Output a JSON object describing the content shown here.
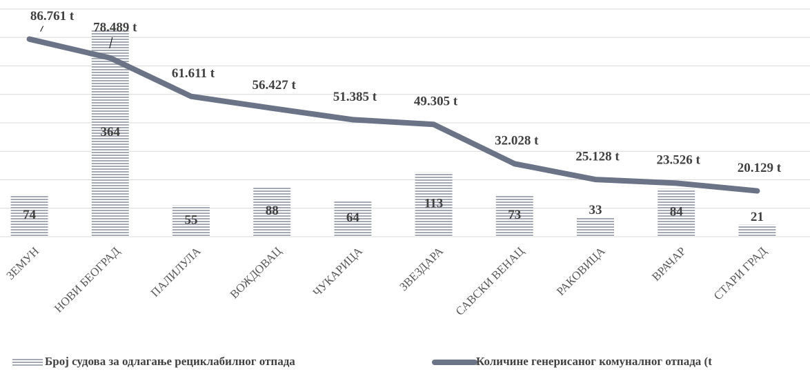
{
  "chart_data": {
    "type": "bar+line",
    "categories": [
      "ЗЕМУН",
      "НОВИ БЕОГРАД",
      "ПАЛИЛУЛА",
      "ВОЖДОВАЦ",
      "ЧУКАРИЦА",
      "ЗВЕЗДАРА",
      "САВСКИ ВЕНАЦ",
      "РАКОВИЦА",
      "ВРАЧАР",
      "СТАРИ ГРАД"
    ],
    "series": [
      {
        "name": "Број судова за одлагање рециклабилног отпада",
        "type": "bar",
        "color": "#a5a9b4",
        "values": [
          74,
          364,
          55,
          88,
          64,
          113,
          73,
          33,
          84,
          21
        ]
      },
      {
        "name": "Количине генерисаног комуналног отпада (t",
        "type": "line",
        "axis": "y2",
        "color": "#6b7386",
        "values": [
          86761,
          78489,
          61611,
          56427,
          51385,
          49305,
          32028,
          25128,
          23526,
          20129
        ],
        "value_labels": [
          "86.761 t",
          "78.489 t",
          "61.611 t",
          "56.427 t",
          "51.385 t",
          "49.305 t",
          "32.028 t",
          "25.128 t",
          "23.526 t",
          "20.129 t"
        ]
      }
    ],
    "ylim": [
      0,
      400
    ],
    "yticks": [
      0,
      50,
      100,
      150,
      200,
      250,
      300,
      350,
      400
    ],
    "y2lim": [
      0,
      100000
    ],
    "grid": true,
    "legend": "bottom"
  }
}
